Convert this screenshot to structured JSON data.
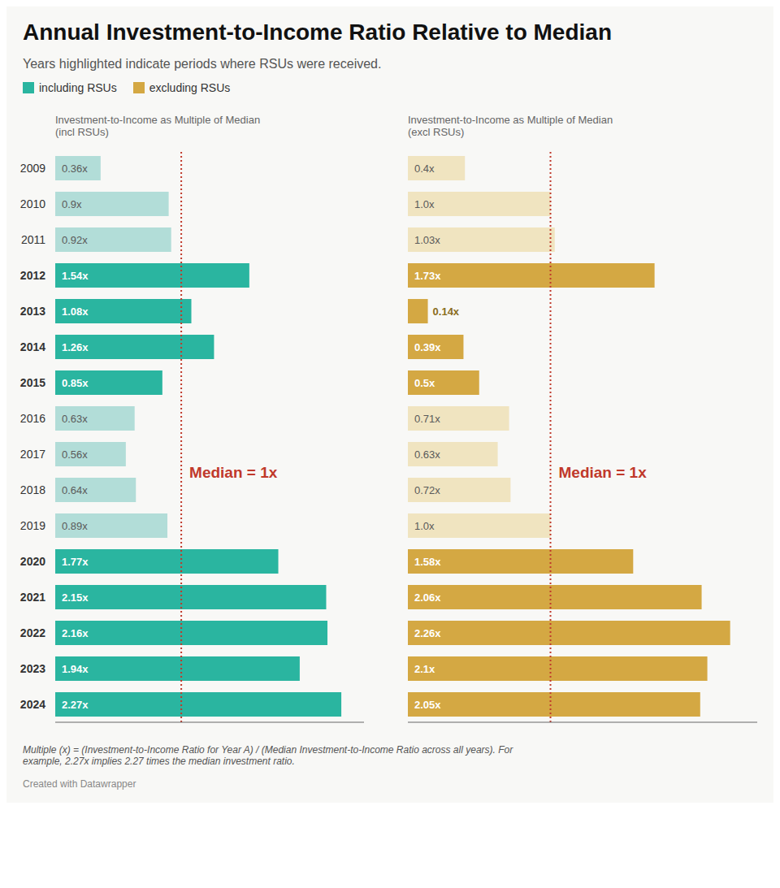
{
  "title": "Annual Investment-to-Income Ratio Relative to Median",
  "subtitle": "Years highlighted indicate periods where RSUs were received.",
  "footnote": "Multiple (x) = (Investment-to-Income Ratio for Year A) / (Median Investment-to-Income Ratio across all years). For\nexample, 2.27x implies 2.27 times the median investment ratio.",
  "credit": "Created with Datawrapper",
  "legend": "upper left",
  "chart_data": [
    {
      "type": "bar",
      "orientation": "horizontal",
      "title": "Investment-to-Income as Multiple of Median\n(incl RSUs)",
      "categories": [
        2009,
        2010,
        2011,
        2012,
        2013,
        2014,
        2015,
        2016,
        2017,
        2018,
        2019,
        2020,
        2021,
        2022,
        2023,
        2024
      ],
      "series": [
        {
          "name": "including RSUs",
          "color": "#2ab5a0",
          "values": [
            0.36,
            0.9,
            0.92,
            1.54,
            1.08,
            1.26,
            0.85,
            0.63,
            0.56,
            0.64,
            0.89,
            1.77,
            2.15,
            2.16,
            1.94,
            2.27
          ],
          "colors": [
            "#b2ddd8",
            "#b2ddd8",
            "#b2ddd8",
            "#2ab5a0",
            "#2ab5a0",
            "#2ab5a0",
            "#2ab5a0",
            "#b2ddd8",
            "#b2ddd8",
            "#b2ddd8",
            "#b2ddd8",
            "#2ab5a0",
            "#2ab5a0",
            "#2ab5a0",
            "#2ab5a0",
            "#2ab5a0"
          ],
          "value_labels": [
            "0.36x",
            "0.9x",
            "0.92x",
            "1.54x",
            "1.08x",
            "1.26x",
            "0.85x",
            "0.63x",
            "0.56x",
            "0.64x",
            "0.89x",
            "1.77x",
            "2.15x",
            "2.16x",
            "1.94x",
            "2.27x"
          ]
        }
      ],
      "xlim": [
        0,
        2.45
      ],
      "data_labels": true,
      "tick_labels": "y",
      "annotations": [
        {
          "x": 1.0,
          "text": "Median = 1x",
          "color": "#c0392b"
        }
      ]
    },
    {
      "type": "bar",
      "orientation": "horizontal",
      "title": "Investment-to-Income as Multiple of Median\n(excl RSUs)",
      "categories": [
        2009,
        2010,
        2011,
        2012,
        2013,
        2014,
        2015,
        2016,
        2017,
        2018,
        2019,
        2020,
        2021,
        2022,
        2023,
        2024
      ],
      "series": [
        {
          "name": "excluding RSUs",
          "color": "#d4a843",
          "values": [
            0.4,
            1.0,
            1.03,
            1.73,
            0.14,
            0.39,
            0.5,
            0.71,
            0.63,
            0.72,
            1.0,
            1.58,
            2.06,
            2.26,
            2.1,
            2.05
          ],
          "colors": [
            "#f0e4c0",
            "#f0e4c0",
            "#f0e4c0",
            "#d4a843",
            "#d4a843",
            "#d4a843",
            "#d4a843",
            "#f0e4c0",
            "#f0e4c0",
            "#f0e4c0",
            "#f0e4c0",
            "#d4a843",
            "#d4a843",
            "#d4a843",
            "#d4a843",
            "#d4a843"
          ],
          "value_labels": [
            "0.4x",
            "1.0x",
            "1.03x",
            "1.73x",
            "0.14x",
            "0.39x",
            "0.5x",
            "0.71x",
            "0.63x",
            "0.72x",
            "1.0x",
            "1.58x",
            "2.06x",
            "2.26x",
            "2.1x",
            "2.05x"
          ]
        }
      ],
      "xlim": [
        0,
        2.45
      ],
      "data_labels": true,
      "tick_labels": false,
      "annotations": [
        {
          "x": 1.0,
          "text": "Median = 1x",
          "color": "#c0392b"
        }
      ]
    }
  ]
}
